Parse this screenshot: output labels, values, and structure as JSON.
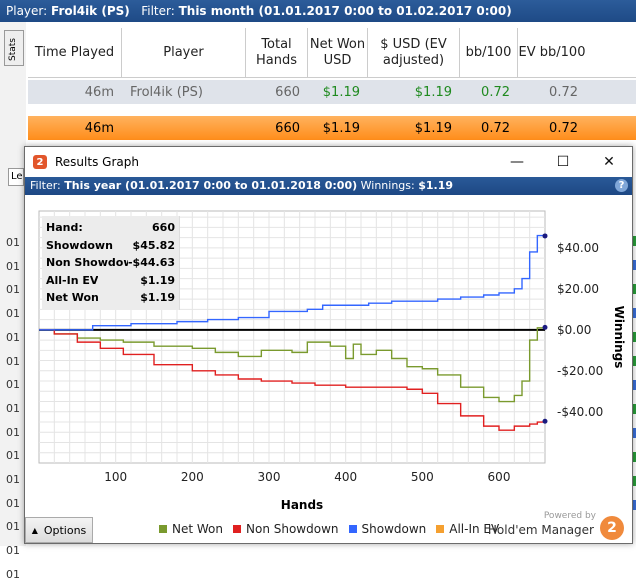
{
  "stats_window": {
    "filter_prefix": "Player:",
    "player_label": "Frol4ik (PS)",
    "filter_label": "Filter:",
    "filter_value": "This month (01.01.2017 0:00 to 01.02.2017 0:00)",
    "side_tab": "Stats",
    "lower_tab": "Le",
    "row_stub_text": "01",
    "columns": [
      "Time Played",
      "Player",
      "Total Hands",
      "Net Won USD",
      "$ USD (EV adjusted)",
      "bb/100",
      "EV bb/100"
    ],
    "player_row": [
      "46m",
      "Frol4ik (PS)",
      "660",
      "$1.19",
      "$1.19",
      "0.72",
      "0.72"
    ],
    "total_row": [
      "46m",
      "",
      "660",
      "$1.19",
      "$1.19",
      "0.72",
      "0.72"
    ]
  },
  "graph_window": {
    "title": "Results Graph",
    "app_icon": "2",
    "controls": {
      "minimize": "—",
      "maximize": "☐",
      "close": "✕"
    },
    "filter_label": "Filter:",
    "filter_value": "This year (01.01.2017 0:00 to 01.01.2018 0:00)",
    "winnings_label": "Winnings:",
    "winnings_value": "$1.19",
    "help": "?",
    "info_box": [
      {
        "label": "Hand:",
        "value": "660"
      },
      {
        "label": "Showdown",
        "value": "$45.82"
      },
      {
        "label": "Non Showdown",
        "value": "-$44.63"
      },
      {
        "label": "All-In EV",
        "value": "$1.19"
      },
      {
        "label": "Net Won",
        "value": "$1.19"
      }
    ],
    "options_label": "Options",
    "powered_by": "Powered by",
    "brand": "Hold'em Manager",
    "brand_logo": "2",
    "colors": {
      "net_won": "#7a9a2e",
      "non_showdown": "#e02020",
      "showdown": "#3366ff",
      "all_in_ev": "#f5a030"
    }
  },
  "chart_data": {
    "type": "line",
    "xlabel": "Hands",
    "ylabel": "Winnings",
    "xlim": [
      0,
      660
    ],
    "ylim": [
      -65,
      58
    ],
    "x_ticks": [
      100,
      200,
      300,
      400,
      500,
      600
    ],
    "y_ticks": [
      40,
      20,
      0,
      -20,
      -40
    ],
    "y_tick_labels": [
      "$40.00",
      "$20.00",
      "$0.00",
      "-$20.00",
      "-$40.00"
    ],
    "grid": true,
    "legend": "bottom",
    "series": [
      {
        "name": "Net Won",
        "color": "#7a9a2e",
        "x": [
          0,
          20,
          50,
          80,
          110,
          150,
          200,
          230,
          260,
          290,
          330,
          350,
          380,
          400,
          410,
          420,
          440,
          460,
          480,
          500,
          520,
          550,
          580,
          600,
          620,
          630,
          640,
          650,
          660
        ],
        "y": [
          0,
          -2,
          -4,
          -5,
          -6,
          -8,
          -9,
          -11,
          -13,
          -10,
          -11,
          -6,
          -8,
          -14,
          -7,
          -12,
          -10,
          -14,
          -18,
          -19,
          -22,
          -28,
          -33,
          -35,
          -32,
          -25,
          -5,
          1,
          1.19
        ]
      },
      {
        "name": "Non Showdown",
        "color": "#e02020",
        "x": [
          0,
          20,
          50,
          80,
          110,
          150,
          200,
          230,
          260,
          290,
          330,
          360,
          400,
          440,
          480,
          500,
          520,
          550,
          580,
          600,
          620,
          640,
          650,
          660
        ],
        "y": [
          0,
          -2,
          -6,
          -9,
          -12,
          -17,
          -20,
          -22,
          -24,
          -25,
          -26,
          -27,
          -28,
          -28,
          -29,
          -31,
          -36,
          -42,
          -47,
          -49,
          -47,
          -46,
          -45,
          -44.63
        ]
      },
      {
        "name": "Showdown",
        "color": "#3366ff",
        "x": [
          0,
          70,
          120,
          180,
          220,
          260,
          300,
          350,
          370,
          400,
          430,
          460,
          490,
          520,
          550,
          580,
          600,
          620,
          630,
          640,
          650,
          660
        ],
        "y": [
          0,
          2,
          3,
          4,
          5,
          6,
          9,
          10,
          12,
          12,
          13,
          14,
          14,
          15,
          16,
          17,
          18,
          20,
          25,
          38,
          46,
          45.82
        ]
      },
      {
        "name": "All-In EV",
        "color": "#f5a030",
        "x": [],
        "y": []
      }
    ]
  }
}
